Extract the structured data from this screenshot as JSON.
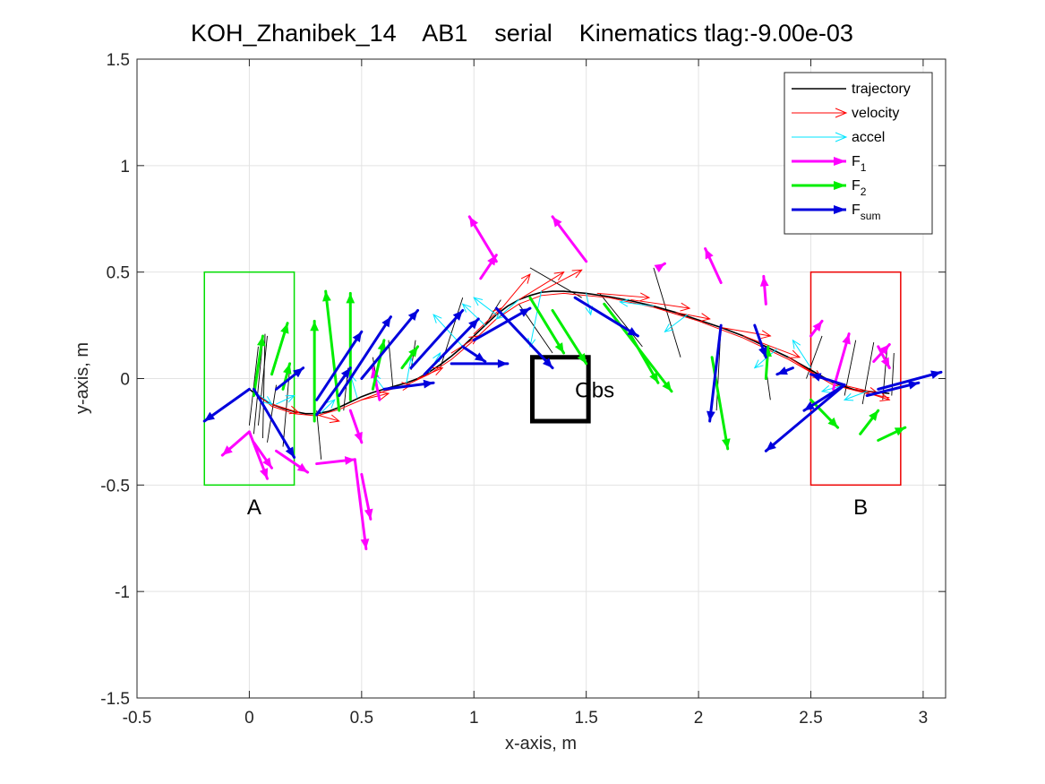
{
  "chart_data": {
    "type": "line",
    "title": "KOH_Zhanibek_14    AB1    serial    Kinematics tlag:-9.00e-03",
    "xlabel": "x-axis, m",
    "ylabel": "y-axis, m",
    "xlim": [
      -0.5,
      3.1
    ],
    "ylim": [
      -1.5,
      1.5
    ],
    "xticks": [
      -0.5,
      0,
      0.5,
      1,
      1.5,
      2,
      2.5,
      3
    ],
    "xtick_labels": [
      "-0.5",
      "0",
      "0.5",
      "1",
      "1.5",
      "2",
      "2.5",
      "3"
    ],
    "yticks": [
      -1.5,
      -1,
      -0.5,
      0,
      0.5,
      1,
      1.5
    ],
    "ytick_labels": [
      "-1.5",
      "-1",
      "-0.5",
      "0",
      "0.5",
      "1",
      "1.5"
    ],
    "grid": true,
    "legend_position": "top-right",
    "colors": {
      "trajectory": "#000000",
      "velocity": "#ff0000",
      "accel": "#00e5ff",
      "F1": "#ff00ff",
      "F2": "#00ee00",
      "Fsum": "#0000dd",
      "regionA": "#00dd00",
      "regionB": "#ee0000",
      "obstacle": "#000000",
      "grid": "#e3e3e3"
    },
    "legend": [
      {
        "key": "trajectory",
        "label": "trajectory",
        "sub": ""
      },
      {
        "key": "velocity",
        "label": "velocity",
        "sub": ""
      },
      {
        "key": "accel",
        "label": "accel",
        "sub": ""
      },
      {
        "key": "F1",
        "label": "F",
        "sub": "1"
      },
      {
        "key": "F2",
        "label": "F",
        "sub": "2"
      },
      {
        "key": "Fsum",
        "label": "F",
        "sub": "sum"
      }
    ],
    "annotations": [
      {
        "text": "A",
        "x": -0.01,
        "y": -0.6
      },
      {
        "text": "B",
        "x": 2.69,
        "y": -0.6
      },
      {
        "text": "Obs",
        "x": 1.45,
        "y": -0.05
      }
    ],
    "regions": [
      {
        "name": "A",
        "x0": -0.2,
        "x1": 0.2,
        "y0": -0.5,
        "y1": 0.5,
        "color_key": "regionA",
        "lw": 1.5
      },
      {
        "name": "B",
        "x0": 2.5,
        "x1": 2.9,
        "y0": -0.5,
        "y1": 0.5,
        "color_key": "regionB",
        "lw": 1.5
      },
      {
        "name": "Obs",
        "x0": 1.26,
        "x1": 1.51,
        "y0": -0.2,
        "y1": 0.1,
        "color_key": "obstacle",
        "lw": 5
      }
    ],
    "trajectory": [
      [
        0,
        -0.05
      ],
      [
        0.05,
        -0.09
      ],
      [
        0.1,
        -0.12
      ],
      [
        0.15,
        -0.14
      ],
      [
        0.2,
        -0.155
      ],
      [
        0.25,
        -0.165
      ],
      [
        0.3,
        -0.165
      ],
      [
        0.35,
        -0.155
      ],
      [
        0.4,
        -0.135
      ],
      [
        0.45,
        -0.11
      ],
      [
        0.5,
        -0.085
      ],
      [
        0.55,
        -0.065
      ],
      [
        0.6,
        -0.05
      ],
      [
        0.65,
        -0.035
      ],
      [
        0.7,
        -0.02
      ],
      [
        0.75,
        0
      ],
      [
        0.8,
        0.03
      ],
      [
        0.85,
        0.065
      ],
      [
        0.9,
        0.105
      ],
      [
        0.95,
        0.15
      ],
      [
        1,
        0.2
      ],
      [
        1.05,
        0.25
      ],
      [
        1.1,
        0.3
      ],
      [
        1.15,
        0.34
      ],
      [
        1.2,
        0.37
      ],
      [
        1.25,
        0.39
      ],
      [
        1.3,
        0.405
      ],
      [
        1.35,
        0.41
      ],
      [
        1.4,
        0.41
      ],
      [
        1.5,
        0.4
      ],
      [
        1.6,
        0.385
      ],
      [
        1.7,
        0.365
      ],
      [
        1.8,
        0.34
      ],
      [
        1.9,
        0.31
      ],
      [
        2,
        0.275
      ],
      [
        2.1,
        0.24
      ],
      [
        2.2,
        0.2
      ],
      [
        2.3,
        0.15
      ],
      [
        2.4,
        0.1
      ],
      [
        2.5,
        0.04
      ],
      [
        2.6,
        -0.02
      ],
      [
        2.7,
        -0.055
      ],
      [
        2.8,
        -0.065
      ],
      [
        2.85,
        -0.07
      ]
    ],
    "trajectory_echo": [
      [
        0.02,
        -0.06
      ],
      [
        0.1,
        -0.13
      ],
      [
        0.2,
        -0.165
      ],
      [
        0.3,
        -0.175
      ],
      [
        0.4,
        -0.145
      ],
      [
        0.5,
        -0.1
      ],
      [
        0.6,
        -0.06
      ],
      [
        0.7,
        -0.03
      ],
      [
        0.8,
        0.02
      ],
      [
        0.9,
        0.09
      ],
      [
        1,
        0.18
      ],
      [
        1.1,
        0.28
      ],
      [
        1.2,
        0.35
      ],
      [
        1.3,
        0.39
      ],
      [
        1.4,
        0.4
      ],
      [
        1.6,
        0.38
      ],
      [
        1.8,
        0.335
      ],
      [
        2,
        0.27
      ],
      [
        2.2,
        0.19
      ],
      [
        2.4,
        0.09
      ],
      [
        2.6,
        -0.03
      ],
      [
        2.75,
        -0.07
      ],
      [
        2.85,
        -0.09
      ]
    ],
    "connectors": [
      [
        [
          0.0,
          -0.22
        ],
        [
          0.04,
          0.15
        ]
      ],
      [
        [
          0.02,
          -0.26
        ],
        [
          0.06,
          0.18
        ]
      ],
      [
        [
          0.04,
          -0.22
        ],
        [
          0.08,
          0.2
        ]
      ],
      [
        [
          0.06,
          -0.28
        ],
        [
          0.07,
          0.21
        ]
      ],
      [
        [
          0.08,
          -0.3
        ],
        [
          0.12,
          -0.03
        ]
      ],
      [
        [
          0.15,
          -0.32
        ],
        [
          0.18,
          0.05
        ]
      ],
      [
        [
          0.3,
          -0.15
        ],
        [
          0.32,
          -0.38
        ]
      ],
      [
        [
          0.42,
          -0.15
        ],
        [
          0.44,
          0.05
        ]
      ],
      [
        [
          0.55,
          0.1
        ],
        [
          0.58,
          -0.1
        ]
      ],
      [
        [
          0.62,
          0.18
        ],
        [
          0.64,
          -0.05
        ]
      ],
      [
        [
          0.72,
          0.04
        ],
        [
          0.74,
          0.18
        ]
      ],
      [
        [
          0.85,
          0.05
        ],
        [
          0.95,
          0.38
        ]
      ],
      [
        [
          1.05,
          0.25
        ],
        [
          1.12,
          0.37
        ]
      ],
      [
        [
          1.2,
          0.35
        ],
        [
          1.35,
          0.12
        ]
      ],
      [
        [
          1.25,
          0.52
        ],
        [
          1.48,
          0.38
        ]
      ],
      [
        [
          1.56,
          0.4
        ],
        [
          1.75,
          0.15
        ]
      ],
      [
        [
          1.8,
          0.52
        ],
        [
          1.92,
          0.1
        ]
      ],
      [
        [
          2.1,
          0.25
        ],
        [
          2.08,
          -0.15
        ]
      ],
      [
        [
          2.3,
          0.05
        ],
        [
          2.32,
          -0.1
        ]
      ],
      [
        [
          2.48,
          0.0
        ],
        [
          2.55,
          0.2
        ]
      ],
      [
        [
          2.65,
          -0.08
        ],
        [
          2.7,
          0.18
        ]
      ],
      [
        [
          2.73,
          -0.12
        ],
        [
          2.78,
          0.17
        ]
      ],
      [
        [
          2.82,
          -0.1
        ],
        [
          2.84,
          0.15
        ]
      ],
      [
        [
          2.86,
          -0.08
        ],
        [
          2.87,
          0.12
        ]
      ]
    ],
    "velocity_vectors": [
      [
        [
          0.1,
          -0.12
        ],
        [
          0.22,
          -0.16
        ]
      ],
      [
        [
          0.3,
          -0.17
        ],
        [
          0.4,
          -0.2
        ]
      ],
      [
        [
          0.5,
          -0.1
        ],
        [
          0.62,
          -0.07
        ]
      ],
      [
        [
          0.6,
          -0.05
        ],
        [
          0.72,
          -0.03
        ]
      ],
      [
        [
          0.75,
          0.0
        ],
        [
          0.86,
          0.05
        ]
      ],
      [
        [
          0.9,
          0.12
        ],
        [
          1.02,
          0.2
        ]
      ],
      [
        [
          1.0,
          0.21
        ],
        [
          1.12,
          0.33
        ]
      ],
      [
        [
          1.1,
          0.3
        ],
        [
          1.25,
          0.49
        ]
      ],
      [
        [
          1.2,
          0.37
        ],
        [
          1.4,
          0.5
        ]
      ],
      [
        [
          1.3,
          0.41
        ],
        [
          1.48,
          0.51
        ]
      ],
      [
        [
          1.55,
          0.4
        ],
        [
          1.78,
          0.38
        ]
      ],
      [
        [
          1.7,
          0.37
        ],
        [
          1.96,
          0.33
        ]
      ],
      [
        [
          1.9,
          0.31
        ],
        [
          2.05,
          0.28
        ]
      ],
      [
        [
          2.1,
          0.24
        ],
        [
          2.32,
          0.2
        ]
      ],
      [
        [
          2.2,
          0.2
        ],
        [
          2.45,
          0.1
        ]
      ],
      [
        [
          2.4,
          0.1
        ],
        [
          2.55,
          0.0
        ]
      ],
      [
        [
          2.6,
          -0.02
        ],
        [
          2.8,
          -0.07
        ]
      ],
      [
        [
          2.7,
          -0.05
        ],
        [
          2.85,
          -0.1
        ]
      ]
    ],
    "accel_vectors": [
      [
        [
          0.02,
          -0.06
        ],
        [
          0.1,
          -0.12
        ]
      ],
      [
        [
          0.12,
          -0.12
        ],
        [
          0.2,
          -0.08
        ]
      ],
      [
        [
          0.32,
          -0.16
        ],
        [
          0.38,
          -0.1
        ]
      ],
      [
        [
          0.48,
          -0.09
        ],
        [
          0.45,
          0.02
        ]
      ],
      [
        [
          0.6,
          -0.05
        ],
        [
          0.55,
          0.02
        ]
      ],
      [
        [
          0.7,
          -0.02
        ],
        [
          0.72,
          0.1
        ]
      ],
      [
        [
          0.8,
          0.03
        ],
        [
          0.85,
          0.12
        ]
      ],
      [
        [
          0.95,
          0.15
        ],
        [
          0.82,
          0.3
        ]
      ],
      [
        [
          1.05,
          0.25
        ],
        [
          0.95,
          0.35
        ]
      ],
      [
        [
          1.1,
          0.3
        ],
        [
          1.0,
          0.38
        ]
      ],
      [
        [
          1.2,
          0.37
        ],
        [
          1.1,
          0.28
        ]
      ],
      [
        [
          1.3,
          0.41
        ],
        [
          1.25,
          0.15
        ]
      ],
      [
        [
          1.5,
          0.4
        ],
        [
          1.52,
          0.3
        ]
      ],
      [
        [
          1.8,
          0.34
        ],
        [
          1.65,
          0.36
        ]
      ],
      [
        [
          1.95,
          0.3
        ],
        [
          1.85,
          0.22
        ]
      ],
      [
        [
          2.35,
          0.14
        ],
        [
          2.25,
          0.05
        ]
      ],
      [
        [
          2.5,
          0.05
        ],
        [
          2.42,
          0.18
        ]
      ],
      [
        [
          2.65,
          -0.03
        ],
        [
          2.55,
          -0.06
        ]
      ],
      [
        [
          2.75,
          -0.06
        ],
        [
          2.65,
          -0.1
        ]
      ]
    ],
    "F1_vectors": [
      [
        [
          0.0,
          -0.25
        ],
        [
          -0.12,
          -0.36
        ]
      ],
      [
        [
          0.0,
          -0.25
        ],
        [
          0.08,
          -0.47
        ]
      ],
      [
        [
          0.02,
          -0.3
        ],
        [
          0.1,
          -0.42
        ]
      ],
      [
        [
          0.3,
          -0.4
        ],
        [
          0.47,
          -0.38
        ]
      ],
      [
        [
          0.47,
          -0.38
        ],
        [
          0.52,
          -0.8
        ]
      ],
      [
        [
          0.5,
          -0.45
        ],
        [
          0.54,
          -0.66
        ]
      ],
      [
        [
          0.12,
          -0.34
        ],
        [
          0.26,
          -0.44
        ]
      ],
      [
        [
          0.45,
          -0.15
        ],
        [
          0.5,
          -0.3
        ]
      ],
      [
        [
          0.58,
          -0.1
        ],
        [
          0.55,
          0.05
        ]
      ],
      [
        [
          1.1,
          0.55
        ],
        [
          0.98,
          0.76
        ]
      ],
      [
        [
          1.03,
          0.47
        ],
        [
          1.1,
          0.58
        ]
      ],
      [
        [
          1.5,
          0.55
        ],
        [
          1.35,
          0.76
        ]
      ],
      [
        [
          1.82,
          0.52
        ],
        [
          1.85,
          0.54
        ]
      ],
      [
        [
          2.1,
          0.45
        ],
        [
          2.03,
          0.61
        ]
      ],
      [
        [
          2.3,
          0.35
        ],
        [
          2.29,
          0.48
        ]
      ],
      [
        [
          2.5,
          0.2
        ],
        [
          2.55,
          0.27
        ]
      ],
      [
        [
          2.6,
          -0.05
        ],
        [
          2.67,
          0.21
        ]
      ],
      [
        [
          2.78,
          0.08
        ],
        [
          2.85,
          0.16
        ]
      ],
      [
        [
          2.8,
          0.15
        ],
        [
          2.85,
          0.05
        ]
      ]
    ],
    "F2_vectors": [
      [
        [
          0.02,
          -0.08
        ],
        [
          0.06,
          0.2
        ]
      ],
      [
        [
          0.1,
          0.02
        ],
        [
          0.17,
          0.26
        ]
      ],
      [
        [
          0.15,
          -0.05
        ],
        [
          0.18,
          0.07
        ]
      ],
      [
        [
          0.29,
          -0.2
        ],
        [
          0.29,
          0.27
        ]
      ],
      [
        [
          0.4,
          -0.15
        ],
        [
          0.34,
          0.41
        ]
      ],
      [
        [
          0.45,
          -0.1
        ],
        [
          0.45,
          0.4
        ]
      ],
      [
        [
          0.55,
          -0.05
        ],
        [
          0.6,
          0.18
        ]
      ],
      [
        [
          0.68,
          0.05
        ],
        [
          0.75,
          0.15
        ]
      ],
      [
        [
          1.25,
          0.38
        ],
        [
          1.4,
          0.12
        ]
      ],
      [
        [
          1.35,
          0.32
        ],
        [
          1.5,
          0.07
        ]
      ],
      [
        [
          1.58,
          0.35
        ],
        [
          1.88,
          -0.06
        ]
      ],
      [
        [
          1.7,
          0.2
        ],
        [
          1.82,
          -0.02
        ]
      ],
      [
        [
          2.06,
          0.1
        ],
        [
          2.13,
          -0.33
        ]
      ],
      [
        [
          2.3,
          0.0
        ],
        [
          2.31,
          0.15
        ]
      ],
      [
        [
          2.5,
          -0.1
        ],
        [
          2.62,
          -0.23
        ]
      ],
      [
        [
          2.72,
          -0.26
        ],
        [
          2.8,
          -0.15
        ]
      ],
      [
        [
          2.8,
          -0.29
        ],
        [
          2.92,
          -0.23
        ]
      ]
    ],
    "Fsum_vectors": [
      [
        [
          0.0,
          -0.05
        ],
        [
          -0.2,
          -0.2
        ]
      ],
      [
        [
          0.02,
          -0.05
        ],
        [
          0.2,
          -0.37
        ]
      ],
      [
        [
          0.12,
          -0.05
        ],
        [
          0.24,
          0.05
        ]
      ],
      [
        [
          0.3,
          -0.1
        ],
        [
          0.5,
          0.22
        ]
      ],
      [
        [
          0.3,
          -0.17
        ],
        [
          0.45,
          0.05
        ]
      ],
      [
        [
          0.4,
          -0.08
        ],
        [
          0.63,
          0.29
        ]
      ],
      [
        [
          0.5,
          0.0
        ],
        [
          0.75,
          0.32
        ]
      ],
      [
        [
          0.72,
          0.05
        ],
        [
          0.95,
          0.32
        ]
      ],
      [
        [
          0.78,
          0.02
        ],
        [
          1.02,
          0.28
        ]
      ],
      [
        [
          0.6,
          -0.05
        ],
        [
          0.82,
          -0.02
        ]
      ],
      [
        [
          0.9,
          0.07
        ],
        [
          1.15,
          0.07
        ]
      ],
      [
        [
          0.95,
          0.15
        ],
        [
          1.05,
          0.08
        ]
      ],
      [
        [
          1.0,
          0.18
        ],
        [
          1.25,
          0.33
        ]
      ],
      [
        [
          1.1,
          0.33
        ],
        [
          1.35,
          0.05
        ]
      ],
      [
        [
          1.45,
          0.38
        ],
        [
          1.73,
          0.2
        ]
      ],
      [
        [
          2.1,
          0.25
        ],
        [
          2.05,
          -0.2
        ]
      ],
      [
        [
          2.25,
          0.25
        ],
        [
          2.3,
          0.1
        ]
      ],
      [
        [
          2.42,
          0.05
        ],
        [
          2.35,
          0.02
        ]
      ],
      [
        [
          2.65,
          -0.03
        ],
        [
          2.3,
          -0.34
        ]
      ],
      [
        [
          2.65,
          -0.03
        ],
        [
          2.47,
          -0.15
        ]
      ],
      [
        [
          2.65,
          -0.03
        ],
        [
          2.5,
          0.02
        ]
      ],
      [
        [
          2.8,
          -0.05
        ],
        [
          3.08,
          0.03
        ]
      ],
      [
        [
          2.75,
          -0.08
        ],
        [
          2.98,
          -0.02
        ]
      ]
    ]
  }
}
